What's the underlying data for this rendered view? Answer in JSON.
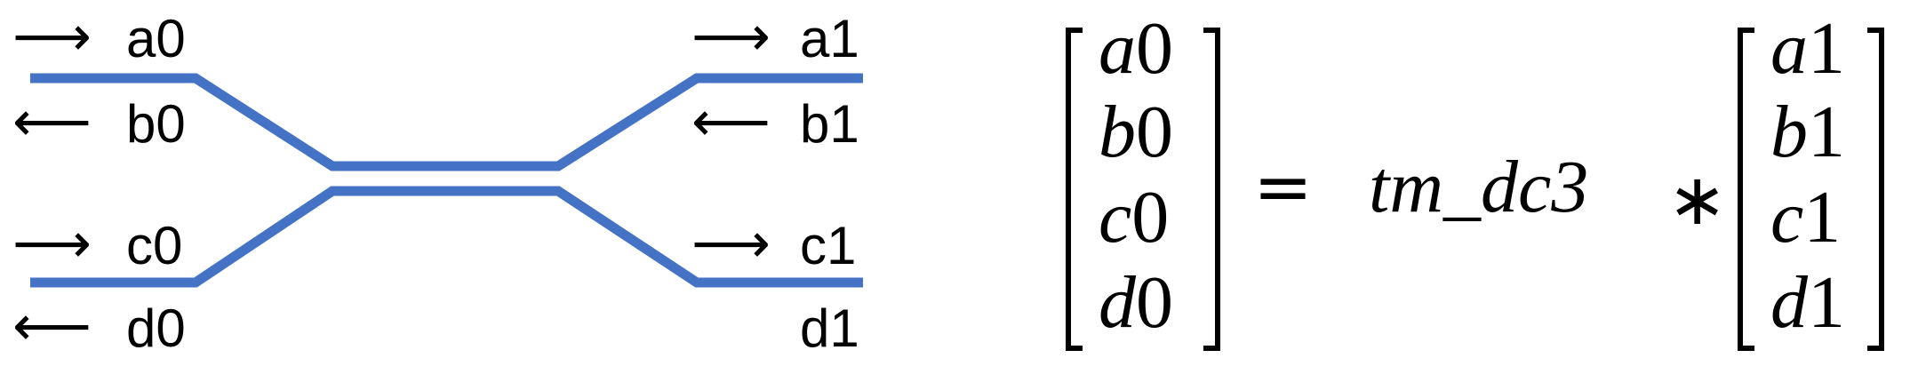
{
  "ports": {
    "left": {
      "a": {
        "arrow": "⟶",
        "label": "a0"
      },
      "b": {
        "arrow": "⟵",
        "label": "b0"
      },
      "c": {
        "arrow": "⟶",
        "label": "c0"
      },
      "d": {
        "arrow": "⟵",
        "label": "d0"
      }
    },
    "right": {
      "a": {
        "arrow": "⟶",
        "label": "a1"
      },
      "b": {
        "arrow": "⟵",
        "label": "b1"
      },
      "c": {
        "arrow": "⟶",
        "label": "c1"
      },
      "d": {
        "label": "d1"
      }
    }
  },
  "equation": {
    "left_vector": [
      {
        "var": "a",
        "idx": "0"
      },
      {
        "var": "b",
        "idx": "0"
      },
      {
        "var": "c",
        "idx": "0"
      },
      {
        "var": "d",
        "idx": "0"
      }
    ],
    "equals": "=",
    "matrix_name": "tm_dc3",
    "times": "∗",
    "right_vector": [
      {
        "var": "a",
        "idx": "1"
      },
      {
        "var": "b",
        "idx": "1"
      },
      {
        "var": "c",
        "idx": "1"
      },
      {
        "var": "d",
        "idx": "1"
      }
    ]
  },
  "colors": {
    "waveguide": "#4472C4",
    "text": "#000000"
  }
}
